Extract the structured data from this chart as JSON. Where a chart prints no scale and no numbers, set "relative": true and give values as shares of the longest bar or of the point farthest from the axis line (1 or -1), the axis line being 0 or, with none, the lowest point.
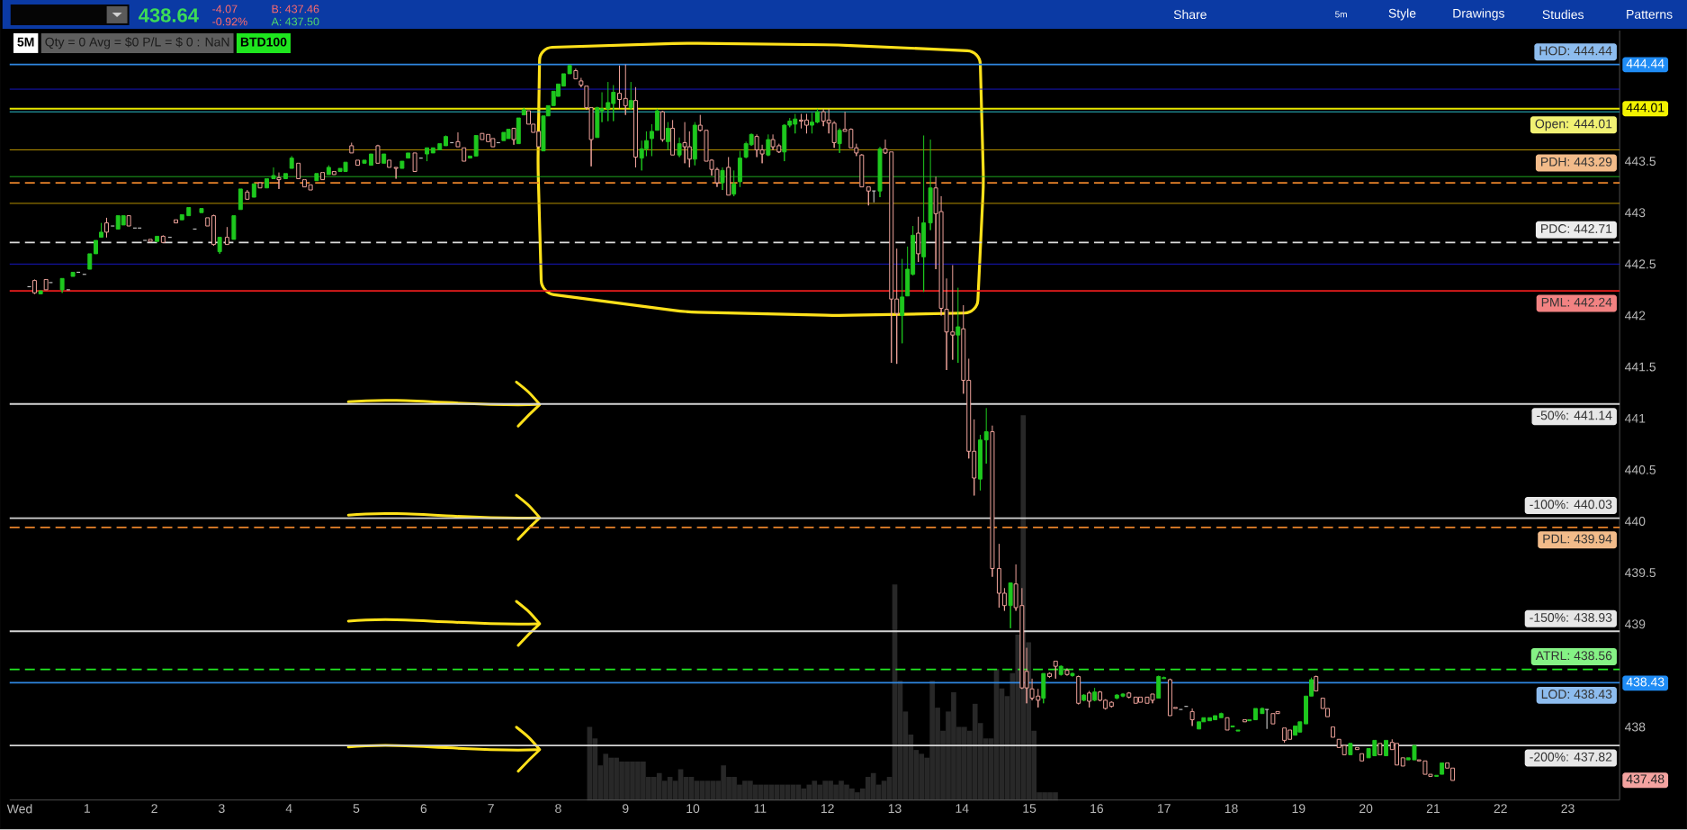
{
  "chart_data": [
    {
      "type": "candlestick",
      "x": [
        0.14,
        0.22,
        0.31,
        0.39,
        0.46,
        0.63,
        0.72,
        0.79,
        0.87,
        0.96,
        1.04,
        1.13,
        1.21,
        1.29,
        1.38,
        1.46,
        1.54,
        1.62,
        1.71,
        1.78,
        1.86,
        1.94,
        2.04,
        2.13,
        2.23,
        2.32,
        2.41,
        2.51,
        2.6,
        2.7,
        2.79,
        2.88,
        2.97,
        3.08,
        3.18,
        3.28,
        3.38,
        3.48,
        3.57,
        3.67,
        3.77,
        3.85,
        3.95,
        4.04,
        4.14,
        4.23,
        4.32,
        4.41,
        4.5,
        4.59,
        4.67,
        4.76,
        4.84,
        4.93,
        5.02,
        5.12,
        5.22,
        5.32,
        5.41,
        5.49,
        5.59,
        5.68,
        5.77,
        5.87,
        5.96,
        6.05,
        6.14,
        6.24,
        6.33,
        6.42,
        6.51,
        6.6,
        6.69,
        6.78,
        6.87,
        6.96,
        7.03,
        7.11,
        7.19,
        7.26,
        7.34,
        7.41,
        7.49,
        7.56,
        7.63,
        7.71,
        7.78,
        7.85,
        7.93,
        8.0,
        8.08,
        8.17,
        8.26,
        8.34,
        8.42,
        8.49,
        8.58,
        8.65,
        8.74,
        8.82,
        8.91,
        9.0,
        9.08,
        9.15,
        9.24,
        9.31,
        9.39,
        9.47,
        9.55,
        9.63,
        9.7,
        9.8,
        9.88,
        9.95,
        10.03,
        10.11,
        10.2,
        10.28,
        10.36,
        10.44,
        10.53,
        10.61,
        10.7,
        10.79,
        10.87,
        10.95,
        11.03,
        11.12,
        11.19,
        11.28,
        11.36,
        11.44,
        11.52,
        11.61,
        11.69,
        11.77,
        11.85,
        11.94,
        12.02,
        12.1,
        12.18,
        12.26,
        12.35,
        12.43,
        12.51,
        12.61,
        12.69,
        12.78,
        12.86,
        12.95,
        13.03,
        13.11,
        13.19,
        13.27,
        13.35,
        13.43,
        13.53,
        13.61,
        13.69,
        13.77,
        13.86,
        13.94,
        14.02,
        14.1,
        14.18,
        14.27,
        14.36,
        14.45,
        14.55,
        14.63,
        14.72,
        14.8,
        14.89,
        14.96,
        15.04,
        15.13,
        15.21,
        15.3,
        15.39,
        15.47,
        15.56,
        15.64,
        15.73,
        15.81,
        15.89,
        15.97,
        16.05,
        16.13,
        16.22,
        16.3,
        16.39,
        16.48,
        16.58,
        16.65,
        16.75,
        16.83,
        16.92,
        17.0,
        17.09,
        17.17,
        17.25,
        17.33,
        17.42,
        17.52,
        17.59,
        17.68,
        17.76,
        17.85,
        17.94,
        18.02,
        18.1,
        18.2,
        18.27,
        18.36,
        18.46,
        18.53,
        18.62,
        18.69,
        18.79,
        18.87,
        18.95,
        19.02,
        19.11,
        19.19,
        19.26,
        19.36,
        19.43,
        19.51,
        19.6,
        19.68,
        19.77,
        19.87,
        19.94,
        20.04,
        20.13,
        20.21,
        20.3,
        20.39,
        20.46,
        20.55,
        20.63,
        20.72,
        20.79,
        20.88,
        20.96,
        21.05,
        21.13,
        21.21,
        21.29
      ],
      "ohlc": [
        [
          442.28,
          442.28,
          442.28,
          442.28
        ],
        [
          442.34,
          442.35,
          442.21,
          442.22
        ],
        [
          442.21,
          442.24,
          442.21,
          442.24
        ],
        [
          442.35,
          442.35,
          442.25,
          442.25
        ],
        [
          442.32,
          442.32,
          442.32,
          442.32
        ],
        [
          442.25,
          442.36,
          442.22,
          442.36
        ],
        [
          442.25,
          442.25,
          442.25,
          442.25
        ],
        [
          442.38,
          442.42,
          442.38,
          442.42
        ],
        [
          442.42,
          442.42,
          442.42,
          442.42
        ],
        [
          442.4,
          442.4,
          442.4,
          442.4
        ],
        [
          442.45,
          442.6,
          442.45,
          442.6
        ],
        [
          442.6,
          442.73,
          442.6,
          442.73
        ],
        [
          442.76,
          442.9,
          442.76,
          442.81
        ],
        [
          442.9,
          442.95,
          442.76,
          442.81
        ],
        [
          442.87,
          442.87,
          442.87,
          442.87
        ],
        [
          442.84,
          442.97,
          442.84,
          442.97
        ],
        [
          442.88,
          442.97,
          442.88,
          442.97
        ],
        [
          442.97,
          442.97,
          442.87,
          442.87
        ],
        [
          442.85,
          442.85,
          442.85,
          442.85
        ],
        [
          442.85,
          442.85,
          442.85,
          442.85
        ],
        [
          442.73,
          442.73,
          442.73,
          442.73
        ],
        [
          442.74,
          442.74,
          442.72,
          442.72
        ],
        [
          442.72,
          442.77,
          442.72,
          442.77
        ],
        [
          442.77,
          442.78,
          442.71,
          442.71
        ],
        [
          442.76,
          442.76,
          442.76,
          442.76
        ],
        [
          442.93,
          442.93,
          442.9,
          442.9
        ],
        [
          442.93,
          442.98,
          442.93,
          442.98
        ],
        [
          442.97,
          443.05,
          442.97,
          443.05
        ],
        [
          442.84,
          442.84,
          442.84,
          442.84
        ],
        [
          443.0,
          443.04,
          443.0,
          443.04
        ],
        [
          442.95,
          442.95,
          442.87,
          442.87
        ],
        [
          442.97,
          442.98,
          442.68,
          442.69
        ],
        [
          442.62,
          442.76,
          442.6,
          442.76
        ],
        [
          442.76,
          442.86,
          442.69,
          442.69
        ],
        [
          442.74,
          442.97,
          442.74,
          442.97
        ],
        [
          443.03,
          443.23,
          443.03,
          443.23
        ],
        [
          443.2,
          443.22,
          443.13,
          443.13
        ],
        [
          443.15,
          443.28,
          443.15,
          443.28
        ],
        [
          443.29,
          443.29,
          443.24,
          443.24
        ],
        [
          443.24,
          443.33,
          443.24,
          443.33
        ],
        [
          443.33,
          443.44,
          443.33,
          443.36
        ],
        [
          443.34,
          443.39,
          443.23,
          443.32
        ],
        [
          443.33,
          443.38,
          443.33,
          443.38
        ],
        [
          443.43,
          443.55,
          443.43,
          443.53
        ],
        [
          443.48,
          443.48,
          443.33,
          443.33
        ],
        [
          443.32,
          443.32,
          443.25,
          443.25
        ],
        [
          443.27,
          443.27,
          443.22,
          443.22
        ],
        [
          443.31,
          443.38,
          443.31,
          443.38
        ],
        [
          443.39,
          443.39,
          443.32,
          443.32
        ],
        [
          443.37,
          443.46,
          443.37,
          443.44
        ],
        [
          443.4,
          443.4,
          443.37,
          443.37
        ],
        [
          443.4,
          443.43,
          443.4,
          443.43
        ],
        [
          443.4,
          443.49,
          443.4,
          443.49
        ],
        [
          443.65,
          443.68,
          443.58,
          443.58
        ],
        [
          443.51,
          443.51,
          443.46,
          443.46
        ],
        [
          443.48,
          443.51,
          443.48,
          443.51
        ],
        [
          443.46,
          443.57,
          443.46,
          443.57
        ],
        [
          443.65,
          443.66,
          443.48,
          443.48
        ],
        [
          443.48,
          443.57,
          443.48,
          443.57
        ],
        [
          443.51,
          443.51,
          443.44,
          443.44
        ],
        [
          443.44,
          443.44,
          443.33,
          443.43
        ],
        [
          443.43,
          443.5,
          443.43,
          443.5
        ],
        [
          443.53,
          443.58,
          443.53,
          443.58
        ],
        [
          443.58,
          443.58,
          443.4,
          443.4
        ],
        [
          443.53,
          443.53,
          443.53,
          443.53
        ],
        [
          443.57,
          443.63,
          443.5,
          443.63
        ],
        [
          443.58,
          443.63,
          443.58,
          443.63
        ],
        [
          443.61,
          443.67,
          443.61,
          443.67
        ],
        [
          443.65,
          443.75,
          443.65,
          443.74
        ],
        [
          443.68,
          443.68,
          443.68,
          443.68
        ],
        [
          443.69,
          443.78,
          443.64,
          443.64
        ],
        [
          443.63,
          443.63,
          443.5,
          443.5
        ],
        [
          443.53,
          443.55,
          443.53,
          443.55
        ],
        [
          443.55,
          443.75,
          443.55,
          443.75
        ],
        [
          443.77,
          443.77,
          443.71,
          443.71
        ],
        [
          443.76,
          443.76,
          443.69,
          443.69
        ],
        [
          443.72,
          443.72,
          443.64,
          443.64
        ],
        [
          443.68,
          443.68,
          443.68,
          443.68
        ],
        [
          443.7,
          443.78,
          443.7,
          443.78
        ],
        [
          443.72,
          443.81,
          443.72,
          443.81
        ],
        [
          443.82,
          443.82,
          443.66,
          443.71
        ],
        [
          443.67,
          443.92,
          443.67,
          443.92
        ],
        [
          443.95,
          444.02,
          443.95,
          444.0
        ],
        [
          443.99,
          443.99,
          443.86,
          443.86
        ],
        [
          443.86,
          443.86,
          443.78,
          443.78
        ],
        [
          443.79,
          443.79,
          443.64,
          443.64
        ],
        [
          443.6,
          443.94,
          443.6,
          443.94
        ],
        [
          443.94,
          444.04,
          443.94,
          444.04
        ],
        [
          444.04,
          444.18,
          444.04,
          444.18
        ],
        [
          444.13,
          444.25,
          444.13,
          444.25
        ],
        [
          444.23,
          444.35,
          444.23,
          444.35
        ],
        [
          444.35,
          444.44,
          444.35,
          444.43
        ],
        [
          444.38,
          444.4,
          444.3,
          444.3
        ],
        [
          444.28,
          444.31,
          444.22,
          444.24
        ],
        [
          444.23,
          444.23,
          444.0,
          444.02
        ],
        [
          444.02,
          444.02,
          443.45,
          443.71
        ],
        [
          443.73,
          444.03,
          443.73,
          444.02
        ],
        [
          443.99,
          444.17,
          443.88,
          444.01
        ],
        [
          444.01,
          444.27,
          443.89,
          444.07
        ],
        [
          444.06,
          444.24,
          443.89,
          444.17
        ],
        [
          444.16,
          444.43,
          444.01,
          444.1
        ],
        [
          444.11,
          444.44,
          443.95,
          444.04
        ],
        [
          444.02,
          444.27,
          444.0,
          444.09
        ],
        [
          444.09,
          444.22,
          443.44,
          443.54
        ],
        [
          443.53,
          443.7,
          443.41,
          443.62
        ],
        [
          443.62,
          443.79,
          443.55,
          443.7
        ],
        [
          443.72,
          443.86,
          443.55,
          443.79
        ],
        [
          443.8,
          444.01,
          443.8,
          443.99
        ],
        [
          443.98,
          443.99,
          443.69,
          443.71
        ],
        [
          443.69,
          443.88,
          443.61,
          443.82
        ],
        [
          443.82,
          443.9,
          443.56,
          443.56
        ],
        [
          443.56,
          443.73,
          443.54,
          443.67
        ],
        [
          443.68,
          443.88,
          443.48,
          443.64
        ],
        [
          443.64,
          443.79,
          443.44,
          443.52
        ],
        [
          443.52,
          443.88,
          443.46,
          443.85
        ],
        [
          443.85,
          443.95,
          443.79,
          443.8
        ],
        [
          443.8,
          443.8,
          443.5,
          443.5
        ],
        [
          443.51,
          443.52,
          443.36,
          443.42
        ],
        [
          443.42,
          443.44,
          443.25,
          443.29
        ],
        [
          443.29,
          443.44,
          443.22,
          443.41
        ],
        [
          443.44,
          443.54,
          443.17,
          443.17
        ],
        [
          443.18,
          443.41,
          443.16,
          443.28
        ],
        [
          443.3,
          443.6,
          443.25,
          443.53
        ],
        [
          443.54,
          443.69,
          443.53,
          443.67
        ],
        [
          443.66,
          443.77,
          443.65,
          443.76
        ],
        [
          443.74,
          443.76,
          443.54,
          443.61
        ],
        [
          443.61,
          443.66,
          443.48,
          443.57
        ],
        [
          443.56,
          443.76,
          443.55,
          443.71
        ],
        [
          443.71,
          443.76,
          443.61,
          443.64
        ],
        [
          443.65,
          443.67,
          443.58,
          443.59
        ],
        [
          443.59,
          443.86,
          443.5,
          443.85
        ],
        [
          443.85,
          443.92,
          443.83,
          443.89
        ],
        [
          443.86,
          443.96,
          443.77,
          443.91
        ],
        [
          443.9,
          443.96,
          443.82,
          443.89
        ],
        [
          443.9,
          443.96,
          443.77,
          443.85
        ],
        [
          443.85,
          443.97,
          443.77,
          443.88
        ],
        [
          443.88,
          444.01,
          443.87,
          443.98
        ],
        [
          443.98,
          444.01,
          443.84,
          443.89
        ],
        [
          443.9,
          444.01,
          443.77,
          443.87
        ],
        [
          443.87,
          443.89,
          443.63,
          443.68
        ],
        [
          443.67,
          443.82,
          443.58,
          443.8
        ],
        [
          443.81,
          443.98,
          443.79,
          443.79
        ],
        [
          443.81,
          443.82,
          443.63,
          443.63
        ],
        [
          443.63,
          443.67,
          443.55,
          443.58
        ],
        [
          443.56,
          443.57,
          443.25,
          443.25
        ],
        [
          443.25,
          443.25,
          443.07,
          443.21
        ],
        [
          443.21,
          443.21,
          443.1,
          443.21
        ],
        [
          443.21,
          443.64,
          443.15,
          443.62
        ],
        [
          443.62,
          443.71,
          443.57,
          443.58
        ],
        [
          443.59,
          443.59,
          441.54,
          442.16
        ],
        [
          442.16,
          442.65,
          441.53,
          442.02
        ],
        [
          442.0,
          442.55,
          441.73,
          442.18
        ],
        [
          442.19,
          442.67,
          442.19,
          442.45
        ],
        [
          442.4,
          442.87,
          442.39,
          442.78
        ],
        [
          442.8,
          442.96,
          442.52,
          442.6
        ],
        [
          442.57,
          443.75,
          442.23,
          442.9
        ],
        [
          442.9,
          443.71,
          442.83,
          443.24
        ],
        [
          443.24,
          443.35,
          442.45,
          442.99
        ],
        [
          443.01,
          443.16,
          442.0,
          442.07
        ],
        [
          442.06,
          442.36,
          441.47,
          441.84
        ],
        [
          441.84,
          442.49,
          441.57,
          441.81
        ],
        [
          441.81,
          442.27,
          441.54,
          441.89
        ],
        [
          441.87,
          442.1,
          441.24,
          441.37
        ],
        [
          441.37,
          441.58,
          440.61,
          440.68
        ],
        [
          440.68,
          440.99,
          440.25,
          440.42
        ],
        [
          440.41,
          440.84,
          440.3,
          440.79
        ],
        [
          440.79,
          441.1,
          440.56,
          440.87
        ],
        [
          440.87,
          440.93,
          439.46,
          439.54
        ],
        [
          439.54,
          439.78,
          439.16,
          439.3
        ],
        [
          439.3,
          439.35,
          439.13,
          439.18
        ],
        [
          439.18,
          439.4,
          438.96,
          439.4
        ],
        [
          439.39,
          439.58,
          439.13,
          439.16
        ],
        [
          439.18,
          439.35,
          438.37,
          438.38
        ],
        [
          438.54,
          438.77,
          438.23,
          438.38
        ],
        [
          438.37,
          438.47,
          438.26,
          438.28
        ],
        [
          438.3,
          438.37,
          438.19,
          438.26
        ],
        [
          438.28,
          438.52,
          438.23,
          438.52
        ],
        [
          438.52,
          438.53,
          438.48,
          438.49
        ],
        [
          438.64,
          438.64,
          438.47,
          438.59
        ],
        [
          438.51,
          438.6,
          438.5,
          438.59
        ],
        [
          438.55,
          438.57,
          438.5,
          438.51
        ],
        [
          438.5,
          438.53,
          438.49,
          438.52
        ],
        [
          438.49,
          438.5,
          438.22,
          438.23
        ],
        [
          438.26,
          438.32,
          438.25,
          438.31
        ],
        [
          438.33,
          438.35,
          438.19,
          438.25
        ],
        [
          438.26,
          438.38,
          438.25,
          438.34
        ],
        [
          438.34,
          438.35,
          438.25,
          438.26
        ],
        [
          438.26,
          438.27,
          438.17,
          438.18
        ],
        [
          438.24,
          438.25,
          438.19,
          438.2
        ],
        [
          438.28,
          438.32,
          438.27,
          438.31
        ],
        [
          438.3,
          438.33,
          438.29,
          438.32
        ],
        [
          438.33,
          438.34,
          438.28,
          438.29
        ],
        [
          438.29,
          438.29,
          438.23,
          438.23
        ],
        [
          438.29,
          438.29,
          438.24,
          438.24
        ],
        [
          438.29,
          438.29,
          438.23,
          438.23
        ],
        [
          438.32,
          438.32,
          438.23,
          438.26
        ],
        [
          438.28,
          438.5,
          438.28,
          438.49
        ],
        [
          438.47,
          438.49,
          438.47,
          438.48
        ],
        [
          438.46,
          438.47,
          438.11,
          438.11
        ],
        [
          438.19,
          438.19,
          438.18,
          438.18
        ],
        [
          438.17,
          438.17,
          438.17,
          438.17
        ],
        [
          438.2,
          438.2,
          438.2,
          438.2
        ],
        [
          438.15,
          438.18,
          438.01,
          438.07
        ],
        [
          437.98,
          438.05,
          437.98,
          438.05
        ],
        [
          438.05,
          438.09,
          438.05,
          438.09
        ],
        [
          438.06,
          438.09,
          438.06,
          438.09
        ],
        [
          438.07,
          438.11,
          438.07,
          438.11
        ],
        [
          438.09,
          438.14,
          438.09,
          438.13
        ],
        [
          438.09,
          438.09,
          437.97,
          437.97
        ],
        [
          438.0,
          438.01,
          438.0,
          438.01
        ],
        [
          437.96,
          437.97,
          437.96,
          437.97
        ],
        [
          438.07,
          438.07,
          438.05,
          438.05
        ],
        [
          438.06,
          438.07,
          438.06,
          438.07
        ],
        [
          438.07,
          438.18,
          438.07,
          438.18
        ],
        [
          438.13,
          438.19,
          438.13,
          438.18
        ],
        [
          438.17,
          438.17,
          437.98,
          438.17
        ],
        [
          438.13,
          438.13,
          438.03,
          438.03
        ],
        [
          438.15,
          438.15,
          438.13,
          438.13
        ],
        [
          437.99,
          437.99,
          437.85,
          437.87
        ],
        [
          437.97,
          437.97,
          437.88,
          437.88
        ],
        [
          437.92,
          438.01,
          437.92,
          438.01
        ],
        [
          437.95,
          438.05,
          437.95,
          438.05
        ],
        [
          438.03,
          438.3,
          438.03,
          438.3
        ],
        [
          438.3,
          438.48,
          438.3,
          438.46
        ],
        [
          438.49,
          438.5,
          438.35,
          438.35
        ],
        [
          438.28,
          438.28,
          438.18,
          438.18
        ],
        [
          438.18,
          438.18,
          438.1,
          438.1
        ],
        [
          438.0,
          438.0,
          437.9,
          437.9
        ],
        [
          437.88,
          437.88,
          437.8,
          437.8
        ],
        [
          437.82,
          437.82,
          437.73,
          437.73
        ],
        [
          437.73,
          437.84,
          437.73,
          437.84
        ],
        [
          437.8,
          437.8,
          437.78,
          437.78
        ],
        [
          437.74,
          437.74,
          437.67,
          437.67
        ],
        [
          437.7,
          437.79,
          437.7,
          437.79
        ],
        [
          437.72,
          437.87,
          437.72,
          437.87
        ],
        [
          437.84,
          437.84,
          437.73,
          437.73
        ],
        [
          437.72,
          437.87,
          437.72,
          437.87
        ],
        [
          437.85,
          437.88,
          437.78,
          437.78
        ],
        [
          437.84,
          437.84,
          437.63,
          437.63
        ],
        [
          437.7,
          437.7,
          437.62,
          437.62
        ],
        [
          437.68,
          437.7,
          437.68,
          437.7
        ],
        [
          437.68,
          437.82,
          437.68,
          437.82
        ],
        [
          437.68,
          437.68,
          437.67,
          437.67
        ],
        [
          437.67,
          437.67,
          437.54,
          437.54
        ],
        [
          437.54,
          437.54,
          437.52,
          437.52
        ],
        [
          437.52,
          437.53,
          437.52,
          437.53
        ],
        [
          437.54,
          437.65,
          437.54,
          437.65
        ],
        [
          437.65,
          437.65,
          437.6,
          437.6
        ],
        [
          437.6,
          437.6,
          437.48,
          437.48
        ]
      ],
      "colors": [
        "#bdbdbd",
        "#f0a49c",
        "#1ec81e",
        "#f0a49c",
        "#bdbdbd",
        "#1ec81e",
        "#bdbdbd",
        "#1ec81e",
        "#bdbdbd",
        "#bdbdbd",
        "#1ec81e",
        "#1ec81e",
        "#1ec81e",
        "#f0a49c",
        "#bdbdbd",
        "#1ec81e",
        "#1ec81e",
        "#f0a49c",
        "#bdbdbd",
        "#bdbdbd",
        "#bdbdbd",
        "#f0a49c",
        "#1ec81e",
        "#f0a49c",
        "#bdbdbd",
        "#f0a49c",
        "#1ec81e",
        "#1ec81e",
        "#bdbdbd",
        "#1ec81e",
        "#f0a49c",
        "#f0a49c",
        "#1ec81e",
        "#f0a49c",
        "#1ec81e",
        "#1ec81e",
        "#f0a49c",
        "#1ec81e",
        "#f0a49c",
        "#1ec81e",
        "#1ec81e",
        "#f0a49c",
        "#1ec81e",
        "#1ec81e",
        "#f0a49c",
        "#f0a49c",
        "#f0a49c",
        "#1ec81e",
        "#f0a49c",
        "#1ec81e",
        "#f0a49c",
        "#1ec81e",
        "#1ec81e",
        "#f0a49c",
        "#f0a49c",
        "#1ec81e",
        "#1ec81e",
        "#f0a49c",
        "#1ec81e",
        "#f0a49c",
        "#f0a49c",
        "#1ec81e",
        "#1ec81e",
        "#f0a49c",
        "#bdbdbd",
        "#1ec81e",
        "#1ec81e",
        "#1ec81e",
        "#1ec81e",
        "#bdbdbd",
        "#f0a49c",
        "#f0a49c",
        "#1ec81e",
        "#1ec81e",
        "#f0a49c",
        "#f0a49c",
        "#f0a49c",
        "#bdbdbd",
        "#1ec81e",
        "#1ec81e",
        "#f0a49c",
        "#1ec81e",
        "#1ec81e",
        "#f0a49c",
        "#f0a49c",
        "#f0a49c",
        "#1ec81e",
        "#1ec81e",
        "#1ec81e",
        "#1ec81e",
        "#1ec81e",
        "#1ec81e",
        "#f0a49c",
        "#f0a49c",
        "#f0a49c",
        "#f0a49c",
        "#1ec81e",
        "#1ec81e",
        "#1ec81e",
        "#1ec81e",
        "#f0a49c",
        "#f0a49c",
        "#1ec81e",
        "#f0a49c",
        "#1ec81e",
        "#1ec81e",
        "#1ec81e",
        "#1ec81e",
        "#f0a49c",
        "#1ec81e",
        "#f0a49c",
        "#1ec81e",
        "#f0a49c",
        "#f0a49c",
        "#1ec81e",
        "#f0a49c",
        "#f0a49c",
        "#f0a49c",
        "#f0a49c",
        "#1ec81e",
        "#f0a49c",
        "#1ec81e",
        "#1ec81e",
        "#1ec81e",
        "#1ec81e",
        "#f0a49c",
        "#f0a49c",
        "#1ec81e",
        "#f0a49c",
        "#f0a49c",
        "#1ec81e",
        "#1ec81e",
        "#1ec81e",
        "#f0a49c",
        "#f0a49c",
        "#1ec81e",
        "#1ec81e",
        "#f0a49c",
        "#f0a49c",
        "#f0a49c",
        "#1ec81e",
        "#f0a49c",
        "#f0a49c",
        "#f0a49c",
        "#f0a49c",
        "#f0a49c",
        "#bdbdbd",
        "#1ec81e",
        "#f0a49c",
        "#f0a49c",
        "#f0a49c",
        "#1ec81e",
        "#1ec81e",
        "#1ec81e",
        "#f0a49c",
        "#1ec81e",
        "#1ec81e",
        "#f0a49c",
        "#f0a49c",
        "#f0a49c",
        "#f0a49c",
        "#1ec81e",
        "#f0a49c",
        "#f0a49c",
        "#f0a49c",
        "#1ec81e",
        "#1ec81e",
        "#f0a49c",
        "#f0a49c",
        "#f0a49c",
        "#1ec81e",
        "#f0a49c",
        "#f0a49c",
        "#f0a49c",
        "#f0a49c",
        "#f0a49c",
        "#1ec81e",
        "#f0a49c",
        "#f0a49c",
        "#1ec81e",
        "#f0a49c",
        "#1ec81e",
        "#f0a49c",
        "#1ec81e",
        "#f0a49c",
        "#1ec81e",
        "#f0a49c",
        "#f0a49c",
        "#f0a49c",
        "#1ec81e",
        "#1ec81e",
        "#f0a49c",
        "#f0a49c",
        "#f0a49c",
        "#f0a49c",
        "#f0a49c",
        "#1ec81e",
        "#1ec81e",
        "#f0a49c",
        "#f0a49c",
        "#bdbdbd",
        "#bdbdbd",
        "#f0a49c",
        "#1ec81e",
        "#1ec81e",
        "#1ec81e",
        "#1ec81e",
        "#1ec81e",
        "#f0a49c",
        "#1ec81e",
        "#1ec81e",
        "#f0a49c",
        "#1ec81e",
        "#1ec81e",
        "#1ec81e",
        "#bdbdbd",
        "#f0a49c",
        "#f0a49c",
        "#f0a49c",
        "#f0a49c",
        "#1ec81e",
        "#1ec81e",
        "#1ec81e",
        "#1ec81e",
        "#f0a49c",
        "#f0a49c",
        "#f0a49c",
        "#f0a49c",
        "#f0a49c",
        "#f0a49c",
        "#1ec81e",
        "#f0a49c",
        "#f0a49c",
        "#1ec81e",
        "#1ec81e",
        "#f0a49c",
        "#1ec81e",
        "#f0a49c",
        "#f0a49c",
        "#f0a49c",
        "#1ec81e",
        "#1ec81e",
        "#f0a49c",
        "#f0a49c",
        "#f0a49c",
        "#1ec81e",
        "#1ec81e",
        "#f0a49c",
        "#f0a49c"
      ],
      "xlim": [
        -0.15,
        23.77
      ],
      "ylim": [
        437.29,
        444.77
      ],
      "xticks": [
        {
          "value": 0,
          "label": "Wed"
        },
        1,
        2,
        3,
        4,
        5,
        6,
        7,
        8,
        9,
        10,
        11,
        12,
        13,
        14,
        15,
        16,
        17,
        18,
        19,
        20,
        21,
        22,
        23
      ],
      "yticks": [
        438,
        439,
        439.5,
        440,
        440.5,
        441,
        441.5,
        442,
        442.5,
        443,
        443.5
      ],
      "ref_lines": [
        {
          "axis": "y",
          "value": 444.44,
          "label": "HOD: 444.44",
          "color": "#2f86e0"
        },
        {
          "axis": "y",
          "value": 444.01,
          "label": "Open: 444.01",
          "color": "#e6e600"
        },
        {
          "axis": "y",
          "value": 443.29,
          "label": "PDH: 443.29",
          "color": "#e8832a",
          "line_style": "dashed"
        },
        {
          "axis": "y",
          "value": 442.71,
          "label": "PDC: 442.71",
          "color": "#dcdcdc",
          "line_style": "dashed"
        },
        {
          "axis": "y",
          "value": 442.24,
          "label": "PML: 442.24",
          "color": "#e81c1c"
        },
        {
          "axis": "y",
          "value": 441.14,
          "label": "-50%: 441.14",
          "color": "#d4d4d4"
        },
        {
          "axis": "y",
          "value": 440.03,
          "label": "-100%: 440.03",
          "color": "#d4d4d4"
        },
        {
          "axis": "y",
          "value": 439.94,
          "label": "PDL: 439.94",
          "color": "#e8832a",
          "line_style": "dashed"
        },
        {
          "axis": "y",
          "value": 438.93,
          "label": "-150%: 438.93",
          "color": "#d4d4d4"
        },
        {
          "axis": "y",
          "value": 438.56,
          "label": "ATRL: 438.56",
          "color": "#22e822",
          "line_style": "dashed"
        },
        {
          "axis": "y",
          "value": 438.43,
          "label": "LOD: 438.43",
          "color": "#2f86e0"
        },
        {
          "axis": "y",
          "value": 437.82,
          "label": "-200%: 437.82",
          "color": "#d4d4d4"
        },
        {
          "axis": "y",
          "value": 444.2,
          "color": "#1a1ad8"
        },
        {
          "axis": "y",
          "value": 443.98,
          "color": "#30d8e8"
        },
        {
          "axis": "y",
          "value": 443.61,
          "color": "#c8a000"
        },
        {
          "axis": "y",
          "value": 443.35,
          "color": "#22b822"
        },
        {
          "axis": "y",
          "value": 443.09,
          "color": "#c8a000"
        },
        {
          "axis": "y",
          "value": 442.5,
          "color": "#1a1ad8"
        }
      ],
      "annotations": [
        "438.64",
        "-4.07",
        "-0.92%",
        "B: 437.46",
        "A: 437.50",
        "Share",
        "5m",
        "Style",
        "Drawings",
        "Studies",
        "Patterns",
        "5M",
        "Qty = 0 Avg = $0 P/L = $ 0 : NaN",
        "BTD100",
        "444.44",
        "444.01",
        "438.43",
        "437.48"
      ]
    },
    {
      "type": "bar",
      "relative": true,
      "color": "#282828",
      "categories": [
        null,
        null,
        null,
        null,
        null,
        null,
        null,
        null,
        null,
        null,
        null,
        null,
        null,
        null,
        null,
        null,
        null,
        null,
        null,
        null,
        null,
        null,
        null,
        null,
        null,
        null,
        null,
        null,
        null,
        null,
        null,
        null,
        null,
        null,
        null,
        null,
        null,
        null,
        null,
        null,
        null,
        null,
        null,
        null,
        null,
        null,
        null,
        null,
        null,
        null,
        null,
        null,
        null,
        null,
        null,
        null,
        null,
        null,
        null,
        null,
        null,
        null,
        null,
        null,
        null,
        null,
        null,
        null,
        null,
        null,
        null,
        null,
        null,
        null,
        null,
        null,
        null,
        null,
        null,
        null,
        null,
        null,
        null,
        null,
        null,
        null,
        null,
        null
      ],
      "values": [
        0.19,
        0.16,
        0.09,
        0.12,
        0.11,
        0.11,
        0.1,
        0.1,
        0.1,
        0.1,
        0.1,
        0.06,
        0.06,
        0.07,
        0.05,
        0.06,
        0.05,
        0.08,
        0.06,
        0.06,
        0.05,
        0.05,
        0.05,
        0.05,
        0.05,
        0.09,
        0.06,
        0.06,
        0.04,
        0.05,
        0.05,
        0.04,
        0.04,
        0.04,
        0.04,
        0.04,
        0.04,
        0.04,
        0.04,
        0.04,
        0.03,
        0.04,
        0.05,
        0.04,
        0.05,
        0.05,
        0.04,
        0.05,
        0.04,
        0.03,
        0.02,
        0.03,
        0.06,
        0.07,
        0.04,
        0.05,
        0.06,
        0.56,
        0.31,
        0.23,
        0.17,
        0.13,
        0.12,
        0.11,
        0.31,
        0.24,
        0.18,
        0.23,
        0.28,
        0.19,
        0.19,
        0.18,
        0.25,
        0.2,
        0.16,
        0.16,
        0.34,
        0.29,
        0.27,
        0.33,
        0.43,
        1,
        0.41,
        0.18,
        0.02,
        0.02,
        0.02,
        0.02
      ]
    }
  ]
}
